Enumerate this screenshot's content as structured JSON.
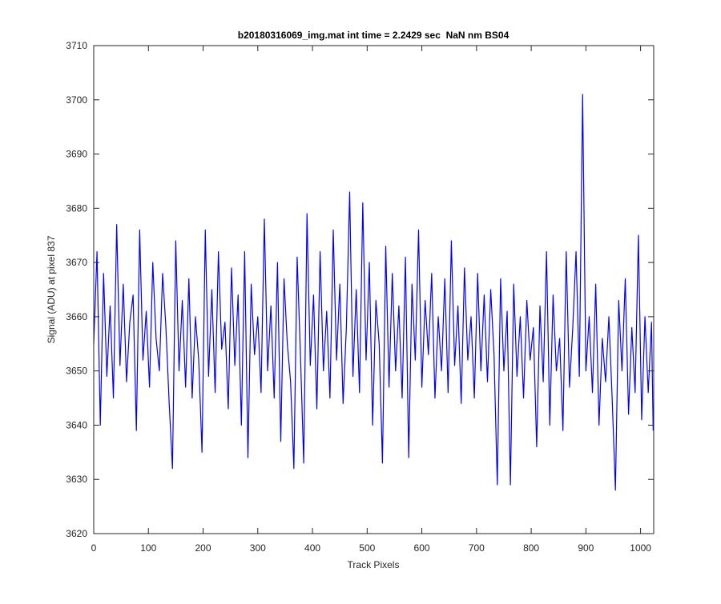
{
  "chart_data": {
    "type": "line",
    "title": "b20180316069_img.mat int time = 2.2429 sec  NaN nm BS04",
    "x_label": "Track Pixels",
    "y_label": "Signal (ADU) at pixel 837",
    "xlim": [
      0,
      1024
    ],
    "ylim": [
      3620,
      3710
    ],
    "xticks": [
      0,
      100,
      200,
      300,
      400,
      500,
      600,
      700,
      800,
      900,
      1000
    ],
    "yticks": [
      3620,
      3630,
      3640,
      3650,
      3660,
      3670,
      3680,
      3690,
      3700,
      3710
    ],
    "grid": false,
    "series": [
      {
        "color": "#0000ff",
        "x": [
          0,
          6,
          12,
          18,
          24,
          30,
          36,
          42,
          48,
          54,
          60,
          66,
          72,
          78,
          84,
          90,
          96,
          102,
          108,
          114,
          120,
          126,
          132,
          138,
          144,
          150,
          156,
          162,
          168,
          174,
          180,
          186,
          192,
          198,
          204,
          210,
          216,
          222,
          228,
          234,
          240,
          246,
          252,
          258,
          264,
          270,
          276,
          282,
          288,
          294,
          300,
          306,
          312,
          318,
          324,
          330,
          336,
          342,
          348,
          354,
          360,
          366,
          372,
          378,
          384,
          390,
          396,
          402,
          408,
          414,
          420,
          426,
          432,
          438,
          444,
          450,
          456,
          462,
          468,
          474,
          480,
          486,
          492,
          498,
          504,
          510,
          516,
          522,
          528,
          534,
          540,
          546,
          552,
          558,
          564,
          570,
          576,
          582,
          588,
          594,
          600,
          606,
          612,
          618,
          624,
          630,
          636,
          642,
          648,
          654,
          660,
          666,
          672,
          678,
          684,
          690,
          696,
          702,
          708,
          714,
          720,
          726,
          732,
          738,
          744,
          750,
          756,
          762,
          768,
          774,
          780,
          786,
          792,
          798,
          804,
          810,
          816,
          822,
          828,
          834,
          840,
          846,
          852,
          858,
          864,
          870,
          876,
          882,
          888,
          894,
          900,
          906,
          912,
          918,
          924,
          930,
          936,
          942,
          948,
          954,
          960,
          966,
          972,
          978,
          984,
          990,
          996,
          1002,
          1008,
          1014,
          1020,
          1023
        ],
        "values": [
          3655,
          3672,
          3640,
          3668,
          3649,
          3662,
          3645,
          3677,
          3651,
          3666,
          3648,
          3659,
          3664,
          3639,
          3676,
          3652,
          3661,
          3647,
          3670,
          3656,
          3650,
          3668,
          3658,
          3644,
          3632,
          3674,
          3650,
          3663,
          3647,
          3667,
          3645,
          3660,
          3652,
          3635,
          3676,
          3649,
          3665,
          3646,
          3672,
          3654,
          3659,
          3643,
          3669,
          3651,
          3664,
          3640,
          3672,
          3634,
          3666,
          3653,
          3660,
          3646,
          3678,
          3650,
          3662,
          3645,
          3670,
          3637,
          3667,
          3655,
          3648,
          3632,
          3671,
          3653,
          3633,
          3679,
          3651,
          3664,
          3643,
          3672,
          3650,
          3661,
          3645,
          3676,
          3652,
          3666,
          3644,
          3658,
          3683,
          3649,
          3665,
          3646,
          3681,
          3652,
          3670,
          3640,
          3663,
          3655,
          3633,
          3673,
          3647,
          3668,
          3650,
          3662,
          3645,
          3671,
          3634,
          3666,
          3652,
          3676,
          3647,
          3663,
          3653,
          3668,
          3645,
          3660,
          3650,
          3667,
          3646,
          3674,
          3651,
          3662,
          3644,
          3669,
          3652,
          3660,
          3645,
          3668,
          3650,
          3664,
          3648,
          3665,
          3653,
          3629,
          3667,
          3650,
          3661,
          3629,
          3666,
          3649,
          3660,
          3645,
          3663,
          3652,
          3658,
          3636,
          3662,
          3648,
          3672,
          3640,
          3664,
          3650,
          3656,
          3639,
          3672,
          3647,
          3658,
          3672,
          3649,
          3701,
          3650,
          3660,
          3646,
          3666,
          3640,
          3656,
          3648,
          3660,
          3645,
          3628,
          3663,
          3650,
          3667,
          3642,
          3658,
          3646,
          3675,
          3641,
          3660,
          3646,
          3659,
          3639
        ]
      }
    ]
  }
}
